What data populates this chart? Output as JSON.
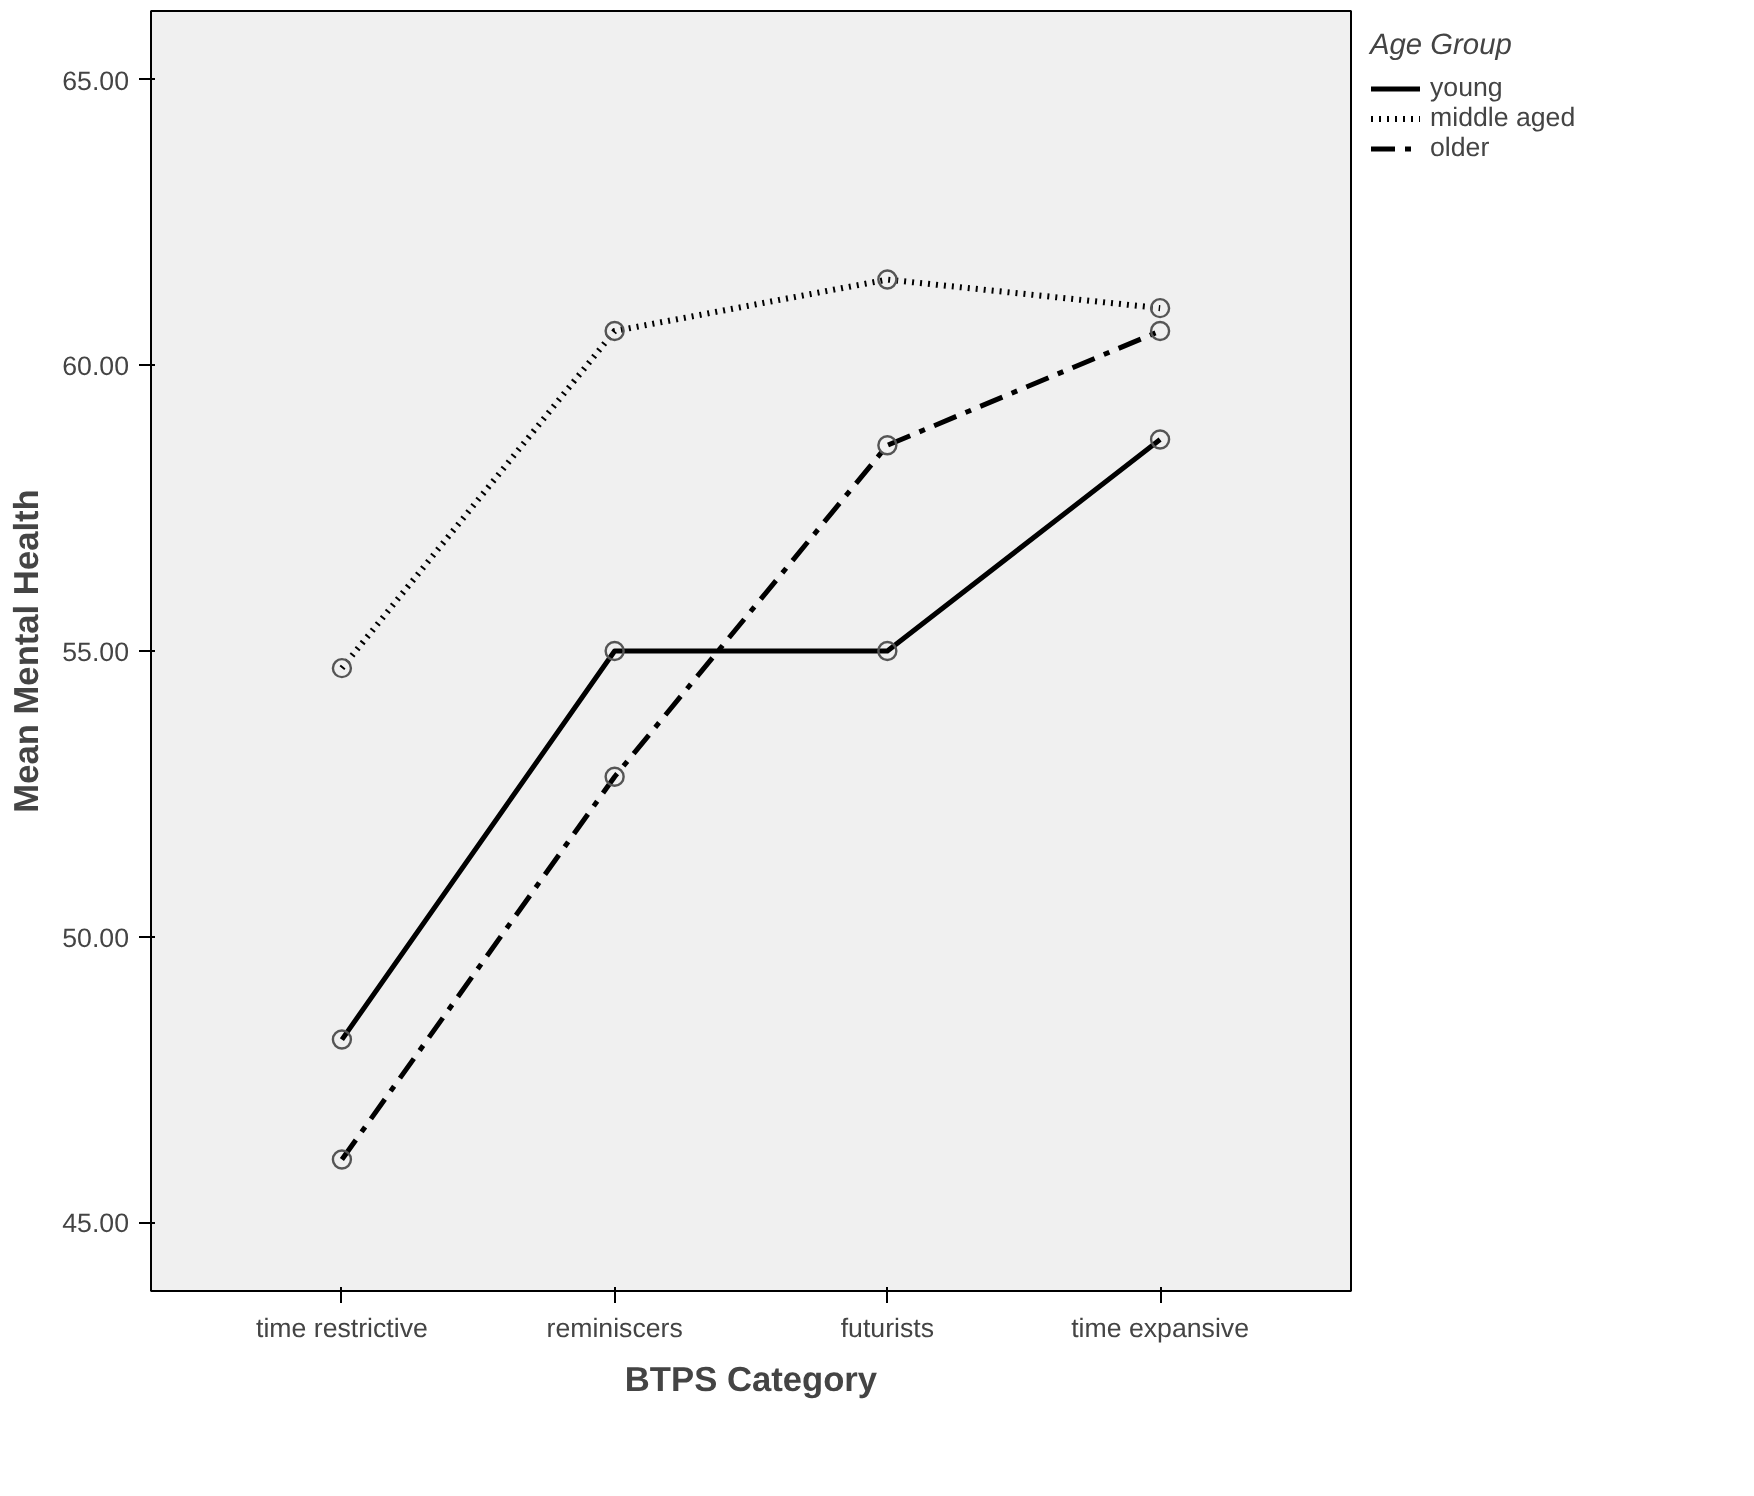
{
  "chart_data": {
    "type": "line",
    "xlabel": "BTPS Category",
    "ylabel": "Mean Mental Health",
    "legend_title": "Age Group",
    "categories": [
      "time restrictive",
      "reminiscers",
      "futurists",
      "time expansive"
    ],
    "series": [
      {
        "name": "young",
        "color": "#000000",
        "line_style": "solid",
        "values": [
          48.2,
          55.0,
          55.0,
          58.7
        ]
      },
      {
        "name": "middle aged",
        "color": "#000000",
        "line_style": "dotted",
        "values": [
          54.7,
          60.6,
          61.5,
          61.0
        ]
      },
      {
        "name": "older",
        "color": "#000000",
        "line_style": "dashdot",
        "values": [
          46.1,
          52.8,
          58.6,
          60.6
        ]
      }
    ],
    "ylim": [
      43.8,
      66.2
    ],
    "yticks": [
      {
        "value": 45,
        "label": "45.00"
      },
      {
        "value": 50,
        "label": "50.00"
      },
      {
        "value": 55,
        "label": "55.00"
      },
      {
        "value": 60,
        "label": "60.00"
      },
      {
        "value": 65,
        "label": "65.00"
      }
    ],
    "marker": "circle",
    "grid": false,
    "legend": "top right"
  }
}
